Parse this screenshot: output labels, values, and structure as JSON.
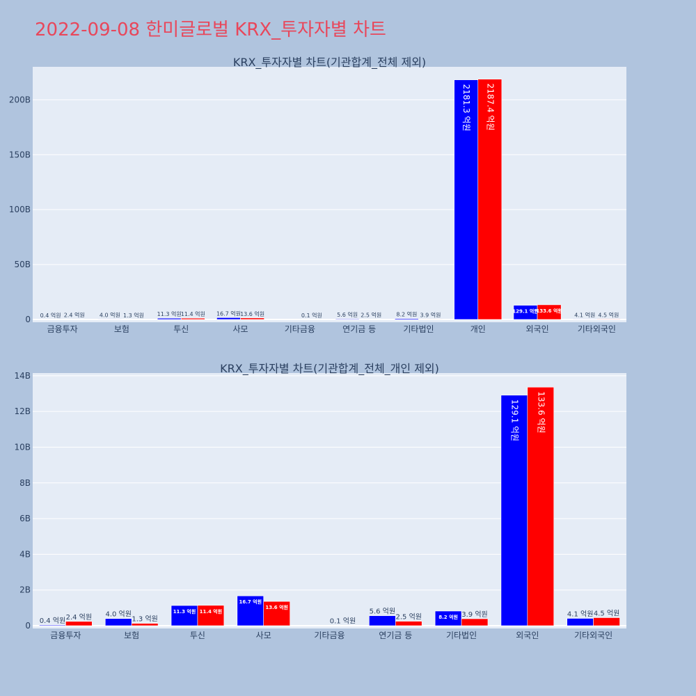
{
  "title": "2022-09-08 한미글로벌 KRX_투자자별 차트",
  "colors": {
    "buy": "#0000ff",
    "sell": "#ff0000",
    "plot_bg": "#e5ecf6",
    "paper_bg": "#b0c4de",
    "title": "#e8475b",
    "text": "#2a3f5f",
    "grid": "#ffffff"
  },
  "chart_data": [
    {
      "type": "bar",
      "title": "KRX_투자자별 차트(기관합계_전체 제외)",
      "categories": [
        "금융투자",
        "보험",
        "투신",
        "사모",
        "기타금융",
        "연기금 등",
        "기타법인",
        "개인",
        "외국인",
        "기타외국인"
      ],
      "series": [
        {
          "color": "#0000ff",
          "values": [
            0.04,
            0.4,
            1.13,
            1.67,
            0,
            0.56,
            0.82,
            218.13,
            12.91,
            0.41
          ],
          "labels": [
            "0.4 억원",
            "4.0 억원",
            "11.3 억원",
            "16.7 억원",
            "",
            "5.6 억원",
            "8.2 억원",
            "2181.3 억원",
            "129.1 억원",
            "4.1 억원"
          ]
        },
        {
          "color": "#ff0000",
          "values": [
            0.24,
            0.13,
            1.14,
            1.36,
            0.01,
            0.25,
            0.39,
            218.74,
            13.36,
            0.45
          ],
          "labels": [
            "2.4 억원",
            "1.3 억원",
            "11.4 억원",
            "13.6 억원",
            "0.1 억원",
            "2.5 억원",
            "3.9 억원",
            "2187.4 억원",
            "133.6 억원",
            "4.5 억원"
          ]
        }
      ],
      "yticks": [
        0,
        50,
        100,
        150,
        200
      ],
      "ytick_labels": [
        "0",
        "50B",
        "100B",
        "150B",
        "200B"
      ],
      "ylim": [
        0,
        230
      ],
      "unit": "억원 / 10",
      "grid": true,
      "legend": "none"
    },
    {
      "type": "bar",
      "title": "KRX_투자자별 차트(기관합계_전체_개인 제외)",
      "categories": [
        "금융투자",
        "보험",
        "투신",
        "사모",
        "기타금융",
        "연기금 등",
        "기타법인",
        "외국인",
        "기타외국인"
      ],
      "series": [
        {
          "color": "#0000ff",
          "values": [
            0.04,
            0.4,
            1.13,
            1.67,
            0,
            0.56,
            0.82,
            12.91,
            0.41
          ],
          "labels": [
            "0.4 억원",
            "4.0 억원",
            "11.3 억원",
            "16.7 억원",
            "",
            "5.6 억원",
            "8.2 억원",
            "129.1 억원",
            "4.1 억원"
          ]
        },
        {
          "color": "#ff0000",
          "values": [
            0.24,
            0.13,
            1.14,
            1.36,
            0.01,
            0.25,
            0.39,
            13.36,
            0.45
          ],
          "labels": [
            "2.4 억원",
            "1.3 억원",
            "11.4 억원",
            "13.6 억원",
            "0.1 억원",
            "2.5 억원",
            "3.9 억원",
            "133.6 억원",
            "4.5 억원"
          ]
        }
      ],
      "yticks": [
        0,
        2,
        4,
        6,
        8,
        10,
        12,
        14
      ],
      "ytick_labels": [
        "0",
        "2B",
        "4B",
        "6B",
        "8B",
        "10B",
        "12B",
        "14B"
      ],
      "ylim": [
        0,
        14.15
      ],
      "grid": true,
      "legend": "none"
    }
  ]
}
